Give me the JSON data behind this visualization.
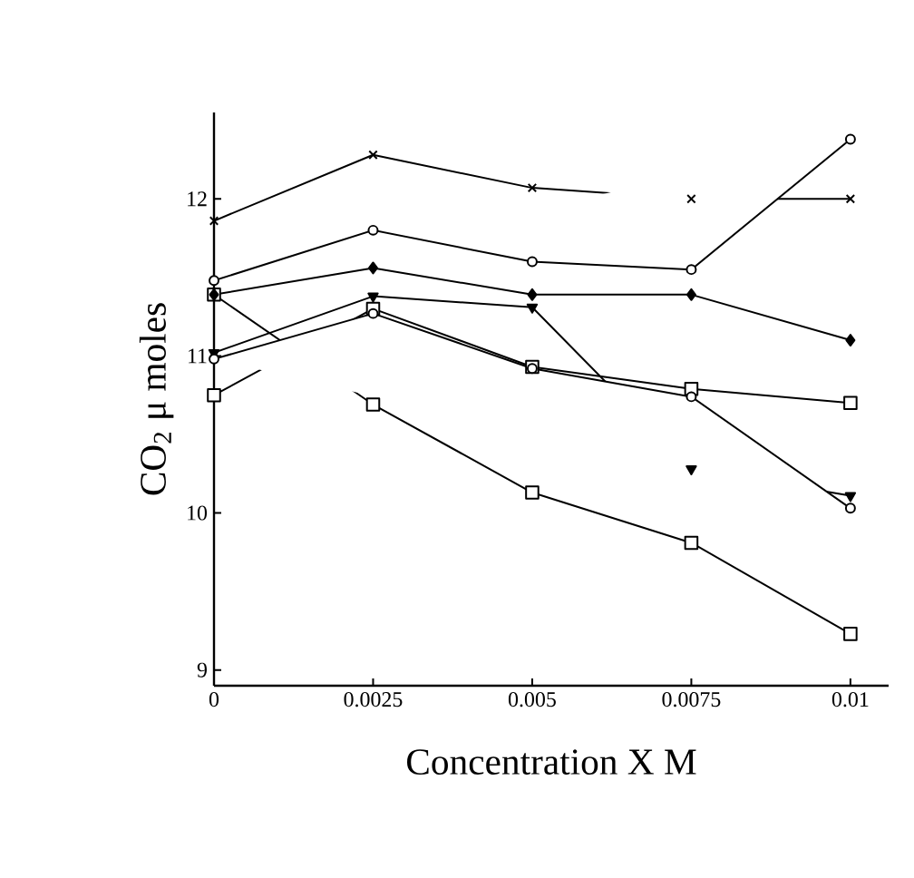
{
  "chart_data": {
    "type": "line",
    "xlabel": "Concentration X M",
    "ylabel": "CO$_{2}$ μ moles",
    "xlim": [
      0,
      0.0106
    ],
    "ylim": [
      8.9,
      12.55
    ],
    "xticks": [
      0,
      0.0025,
      0.005,
      0.0075,
      0.01
    ],
    "yticks": [
      9,
      10,
      11,
      12
    ],
    "x": [
      0,
      0.0025,
      0.005,
      0.0075,
      0.01
    ],
    "series": [
      {
        "color": "#000000",
        "marker": "cross",
        "values": [
          11.86,
          12.28,
          12.07,
          12.0,
          12.0
        ]
      },
      {
        "color": "#000000",
        "marker": "circle",
        "values": [
          11.48,
          11.8,
          11.6,
          11.55,
          12.38
        ]
      },
      {
        "color": "#000000",
        "marker": "diamond",
        "values": [
          11.39,
          11.56,
          11.39,
          11.39,
          11.1
        ]
      },
      {
        "color": "#000000",
        "marker": "triangle",
        "values": [
          11.02,
          11.38,
          11.31,
          10.28,
          10.11
        ]
      },
      {
        "color": "#000000",
        "marker": "square",
        "values": [
          10.75,
          11.3,
          10.93,
          10.79,
          10.7
        ]
      },
      {
        "color": "#000000",
        "marker": "circle",
        "values": [
          10.98,
          11.27,
          10.92,
          10.74,
          10.03
        ]
      },
      {
        "color": "#000000",
        "marker": "square",
        "values": [
          11.39,
          10.69,
          10.13,
          9.81,
          9.23
        ]
      }
    ],
    "line_style": "solid"
  }
}
